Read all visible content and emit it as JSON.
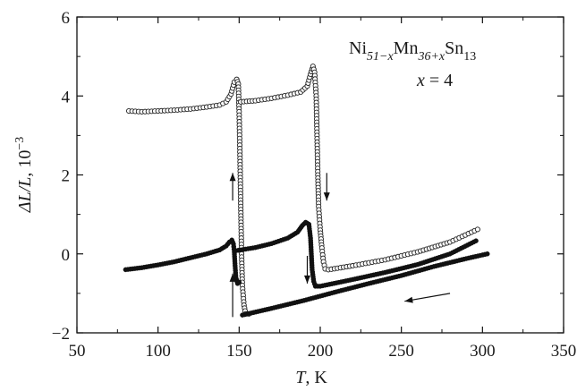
{
  "chart_data": {
    "type": "scatter",
    "xlabel": {
      "symbol": "T",
      "unit": ", K"
    },
    "ylabel": {
      "text": "ΔL/L",
      "unit": ", 10",
      "exp": "−3"
    },
    "xlim": [
      50,
      350
    ],
    "ylim": [
      -2,
      6
    ],
    "xticks": [
      50,
      100,
      150,
      200,
      250,
      300,
      350
    ],
    "yticks": [
      -2,
      0,
      2,
      4,
      6
    ],
    "xtick_labels": [
      "50",
      "100",
      "150",
      "200",
      "250",
      "300",
      "350"
    ],
    "ytick_labels": [
      "−2",
      "0",
      "2",
      "4",
      "6"
    ],
    "annotation": {
      "formula": {
        "ni": "Ni",
        "ni_sub": "51−x",
        "mn": "Mn",
        "mn_sub": "36+x",
        "sn": "Sn",
        "sn_sub": "13"
      },
      "x_label": "x",
      "x_value": " = 4"
    },
    "series": [
      {
        "marker": "open-circle",
        "color": "#222222",
        "segments": [
          {
            "points": [
              [
                82,
                3.62
              ],
              [
                90,
                3.6
              ],
              [
                100,
                3.62
              ],
              [
                110,
                3.64
              ],
              [
                120,
                3.67
              ],
              [
                130,
                3.72
              ],
              [
                138,
                3.77
              ],
              [
                142,
                3.85
              ],
              [
                145,
                4.05
              ],
              [
                147,
                4.35
              ],
              [
                148.5,
                4.42
              ],
              [
                149.5,
                4.3
              ],
              [
                150,
                3.6
              ],
              [
                150.5,
                2.5
              ],
              [
                151,
                1.2
              ],
              [
                151.5,
                0.0
              ],
              [
                152,
                -0.8
              ],
              [
                153,
                -1.3
              ],
              [
                154,
                -1.52
              ],
              [
                156,
                -1.52
              ]
            ]
          },
          {
            "points": [
              [
                151,
                3.85
              ],
              [
                160,
                3.88
              ],
              [
                170,
                3.94
              ],
              [
                180,
                4.02
              ],
              [
                188,
                4.1
              ],
              [
                192,
                4.25
              ],
              [
                194,
                4.55
              ],
              [
                195.5,
                4.75
              ],
              [
                196.5,
                4.6
              ],
              [
                197.5,
                4.0
              ],
              [
                198,
                3.0
              ],
              [
                198.5,
                2.0
              ],
              [
                199,
                1.2
              ],
              [
                200,
                0.6
              ],
              [
                201,
                0.15
              ],
              [
                202,
                -0.2
              ],
              [
                203,
                -0.38
              ],
              [
                205,
                -0.4
              ],
              [
                220,
                -0.3
              ],
              [
                240,
                -0.15
              ],
              [
                260,
                0.05
              ],
              [
                280,
                0.3
              ],
              [
                297,
                0.62
              ]
            ]
          }
        ]
      },
      {
        "marker": "filled-circle",
        "color": "#111111",
        "segments": [
          {
            "points": [
              [
                80,
                -0.4
              ],
              [
                90,
                -0.35
              ],
              [
                100,
                -0.28
              ],
              [
                110,
                -0.2
              ],
              [
                120,
                -0.1
              ],
              [
                130,
                0.0
              ],
              [
                138,
                0.1
              ],
              [
                142,
                0.2
              ],
              [
                144,
                0.3
              ],
              [
                145.5,
                0.35
              ],
              [
                146.5,
                0.25
              ],
              [
                147,
                0.05
              ],
              [
                147.5,
                -0.3
              ],
              [
                148,
                -0.6
              ],
              [
                149,
                -0.75
              ],
              [
                150,
                -0.72
              ]
            ]
          },
          {
            "points": [
              [
                148,
                0.08
              ],
              [
                160,
                0.16
              ],
              [
                170,
                0.26
              ],
              [
                180,
                0.4
              ],
              [
                186,
                0.55
              ],
              [
                189,
                0.72
              ],
              [
                191,
                0.8
              ],
              [
                193,
                0.75
              ],
              [
                194,
                0.4
              ],
              [
                194.5,
                0.0
              ],
              [
                195,
                -0.4
              ],
              [
                196,
                -0.7
              ],
              [
                197,
                -0.82
              ],
              [
                200,
                -0.82
              ],
              [
                220,
                -0.65
              ],
              [
                240,
                -0.47
              ],
              [
                260,
                -0.27
              ],
              [
                280,
                0.0
              ],
              [
                296,
                0.33
              ]
            ]
          },
          {
            "points": [
              [
                152,
                -1.55
              ],
              [
                170,
                -1.38
              ],
              [
                190,
                -1.18
              ],
              [
                210,
                -0.96
              ],
              [
                230,
                -0.75
              ],
              [
                250,
                -0.55
              ],
              [
                270,
                -0.32
              ],
              [
                290,
                -0.12
              ],
              [
                303,
                0.0
              ]
            ]
          }
        ]
      }
    ],
    "arrows": [
      {
        "from": [
          146,
          1.35
        ],
        "to": [
          146,
          2.05
        ]
      },
      {
        "from": [
          146,
          -1.6
        ],
        "to": [
          146,
          -0.5
        ]
      },
      {
        "from": [
          204,
          2.05
        ],
        "to": [
          204,
          1.35
        ]
      },
      {
        "from": [
          192,
          -0.05
        ],
        "to": [
          192,
          -0.75
        ]
      },
      {
        "from": [
          280,
          -1.0
        ],
        "to": [
          252,
          -1.2
        ]
      }
    ]
  }
}
